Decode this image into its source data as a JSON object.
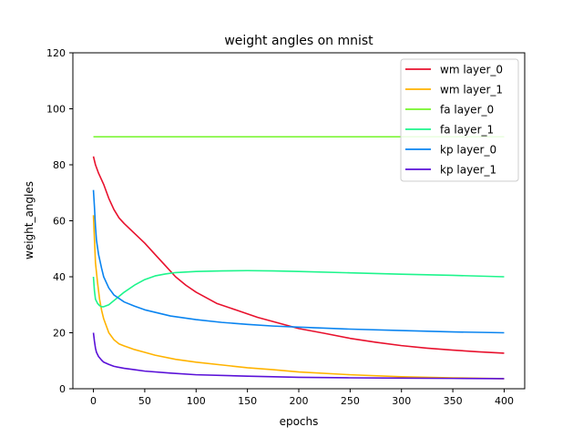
{
  "chart_data": {
    "type": "line",
    "title": "weight angles on mnist",
    "xlabel": "epochs",
    "ylabel": "weight_angles",
    "xlim": [
      -20,
      420
    ],
    "ylim": [
      0,
      120
    ],
    "xticks": [
      0,
      50,
      100,
      150,
      200,
      250,
      300,
      350,
      400
    ],
    "yticks": [
      0,
      20,
      40,
      60,
      80,
      100,
      120
    ],
    "grid": false,
    "legend_position": "top-right",
    "series": [
      {
        "name": "wm layer_0",
        "color": "#e8112d",
        "points": [
          [
            0,
            83
          ],
          [
            2,
            80
          ],
          [
            5,
            77
          ],
          [
            10,
            73
          ],
          [
            15,
            68
          ],
          [
            20,
            64
          ],
          [
            25,
            61
          ],
          [
            30,
            59
          ],
          [
            40,
            55.5
          ],
          [
            50,
            52
          ],
          [
            60,
            48
          ],
          [
            70,
            44
          ],
          [
            80,
            40
          ],
          [
            90,
            37
          ],
          [
            100,
            34.5
          ],
          [
            120,
            30.5
          ],
          [
            140,
            28
          ],
          [
            160,
            25.5
          ],
          [
            180,
            23.5
          ],
          [
            200,
            21.5
          ],
          [
            225,
            19.8
          ],
          [
            250,
            18
          ],
          [
            275,
            16.6
          ],
          [
            300,
            15.4
          ],
          [
            325,
            14.5
          ],
          [
            350,
            13.8
          ],
          [
            375,
            13.2
          ],
          [
            400,
            12.7
          ]
        ]
      },
      {
        "name": "wm layer_1",
        "color": "#ffb300",
        "points": [
          [
            0,
            62
          ],
          [
            2,
            45
          ],
          [
            4,
            38
          ],
          [
            6,
            32
          ],
          [
            8,
            28
          ],
          [
            10,
            25
          ],
          [
            15,
            20
          ],
          [
            20,
            17.5
          ],
          [
            25,
            16
          ],
          [
            30,
            15.3
          ],
          [
            40,
            14
          ],
          [
            50,
            13
          ],
          [
            60,
            12
          ],
          [
            80,
            10.5
          ],
          [
            100,
            9.5
          ],
          [
            125,
            8.5
          ],
          [
            150,
            7.5
          ],
          [
            175,
            6.8
          ],
          [
            200,
            6
          ],
          [
            250,
            5
          ],
          [
            300,
            4.3
          ],
          [
            350,
            3.9
          ],
          [
            400,
            3.6
          ]
        ]
      },
      {
        "name": "fa layer_0",
        "color": "#74f52a",
        "points": [
          [
            0,
            90
          ],
          [
            50,
            90
          ],
          [
            100,
            90
          ],
          [
            150,
            90
          ],
          [
            200,
            90
          ],
          [
            250,
            90
          ],
          [
            300,
            90
          ],
          [
            350,
            90
          ],
          [
            400,
            90
          ]
        ]
      },
      {
        "name": "fa layer_1",
        "color": "#1df58c",
        "points": [
          [
            0,
            40
          ],
          [
            1,
            35
          ],
          [
            2,
            32
          ],
          [
            4,
            30.5
          ],
          [
            6,
            29.7
          ],
          [
            8,
            29.3
          ],
          [
            10,
            29.3
          ],
          [
            15,
            30
          ],
          [
            20,
            31.5
          ],
          [
            30,
            34.5
          ],
          [
            40,
            37
          ],
          [
            50,
            39
          ],
          [
            60,
            40.3
          ],
          [
            70,
            41
          ],
          [
            80,
            41.5
          ],
          [
            100,
            41.9
          ],
          [
            125,
            42.1
          ],
          [
            150,
            42.2
          ],
          [
            175,
            42.1
          ],
          [
            200,
            41.9
          ],
          [
            250,
            41.4
          ],
          [
            300,
            40.9
          ],
          [
            350,
            40.5
          ],
          [
            400,
            40
          ]
        ]
      },
      {
        "name": "kp layer_0",
        "color": "#0a84f0",
        "points": [
          [
            0,
            71
          ],
          [
            1,
            65
          ],
          [
            2,
            58
          ],
          [
            3,
            53
          ],
          [
            5,
            48
          ],
          [
            8,
            43
          ],
          [
            10,
            40
          ],
          [
            15,
            36
          ],
          [
            20,
            33.5
          ],
          [
            30,
            31
          ],
          [
            40,
            29.5
          ],
          [
            50,
            28.2
          ],
          [
            75,
            26
          ],
          [
            100,
            24.7
          ],
          [
            125,
            23.7
          ],
          [
            150,
            23
          ],
          [
            175,
            22.4
          ],
          [
            200,
            22
          ],
          [
            250,
            21.3
          ],
          [
            300,
            20.8
          ],
          [
            350,
            20.3
          ],
          [
            400,
            20
          ]
        ]
      },
      {
        "name": "kp layer_1",
        "color": "#5a11d8",
        "points": [
          [
            0,
            20
          ],
          [
            1,
            17
          ],
          [
            2,
            14.5
          ],
          [
            3,
            13
          ],
          [
            5,
            11.5
          ],
          [
            8,
            10.2
          ],
          [
            10,
            9.5
          ],
          [
            15,
            8.7
          ],
          [
            20,
            8
          ],
          [
            30,
            7.3
          ],
          [
            40,
            6.8
          ],
          [
            50,
            6.3
          ],
          [
            75,
            5.6
          ],
          [
            100,
            5
          ],
          [
            150,
            4.5
          ],
          [
            200,
            4.1
          ],
          [
            250,
            3.9
          ],
          [
            300,
            3.8
          ],
          [
            350,
            3.7
          ],
          [
            400,
            3.6
          ]
        ]
      }
    ]
  }
}
